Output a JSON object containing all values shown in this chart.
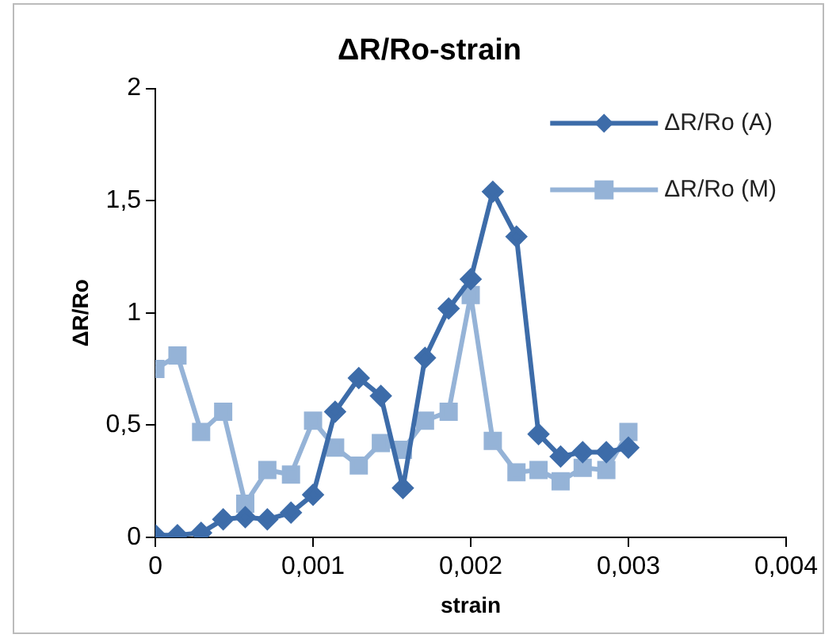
{
  "chart_data": {
    "type": "line",
    "title": "ΔR/Ro-strain",
    "xlabel": "strain",
    "ylabel": "ΔR/Ro",
    "x": [
      0,
      0.00014,
      0.00029,
      0.00043,
      0.00057,
      0.00071,
      0.00086,
      0.001,
      0.00114,
      0.00129,
      0.00143,
      0.00157,
      0.00171,
      0.00186,
      0.002,
      0.00214,
      0.00229,
      0.00243,
      0.00257,
      0.00271,
      0.00286,
      0.003
    ],
    "series": [
      {
        "name": "ΔR/Ro (A)",
        "color": "#3d6ca9",
        "marker": "diamond",
        "values": [
          0.01,
          0.01,
          0.02,
          0.08,
          0.09,
          0.08,
          0.11,
          0.19,
          0.56,
          0.71,
          0.63,
          0.22,
          0.8,
          1.02,
          1.15,
          1.54,
          1.34,
          0.46,
          0.36,
          0.38,
          0.38,
          0.4
        ]
      },
      {
        "name": "ΔR/Ro (M)",
        "color": "#95b3d7",
        "marker": "square",
        "values": [
          0.75,
          0.81,
          0.47,
          0.56,
          0.15,
          0.3,
          0.28,
          0.52,
          0.4,
          0.32,
          0.42,
          0.39,
          0.52,
          0.56,
          1.08,
          0.43,
          0.29,
          0.3,
          0.25,
          0.31,
          0.3,
          0.47
        ]
      }
    ],
    "xlim": [
      0,
      0.004
    ],
    "xticks": [
      0,
      {
        "value": 0.001,
        "label": "0,001"
      },
      {
        "value": 0.002,
        "label": "0,002"
      },
      {
        "value": 0.003,
        "label": "0,003"
      },
      {
        "value": 0.004,
        "label": "0,004"
      }
    ],
    "ylim": [
      0,
      2
    ],
    "yticks": [
      0,
      {
        "value": 0.5,
        "label": "0,5"
      },
      1,
      {
        "value": 1.5,
        "label": "1,5"
      },
      2
    ],
    "grid": false,
    "legend": "top right",
    "line_style": "solid"
  }
}
